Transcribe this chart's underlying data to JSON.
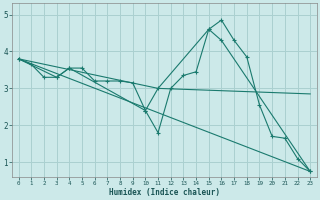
{
  "title": "",
  "xlabel": "Humidex (Indice chaleur)",
  "ylabel": "",
  "background_color": "#cce9e9",
  "grid_color": "#aad0d0",
  "line_color": "#1a7a6e",
  "xlim": [
    -0.5,
    23.5
  ],
  "ylim": [
    0.6,
    5.3
  ],
  "yticks": [
    1,
    2,
    3,
    4,
    5
  ],
  "xticks": [
    0,
    1,
    2,
    3,
    4,
    5,
    6,
    7,
    8,
    9,
    10,
    11,
    12,
    13,
    14,
    15,
    16,
    17,
    18,
    19,
    20,
    21,
    22,
    23
  ],
  "series": [
    {
      "x": [
        0,
        1,
        2,
        3,
        4,
        5,
        6,
        7,
        8,
        9,
        10,
        11,
        12,
        13,
        14,
        15,
        16,
        17,
        18,
        19,
        20,
        21,
        22,
        23
      ],
      "y": [
        3.8,
        3.65,
        3.3,
        3.3,
        3.55,
        3.55,
        3.2,
        3.2,
        3.2,
        3.15,
        2.4,
        1.8,
        3.0,
        3.35,
        3.45,
        4.6,
        4.85,
        4.3,
        3.85,
        2.55,
        1.7,
        1.65,
        1.1,
        0.75
      ],
      "has_markers": true
    },
    {
      "x": [
        0,
        3,
        4,
        10,
        11,
        15,
        16,
        23
      ],
      "y": [
        3.8,
        3.3,
        3.55,
        2.4,
        3.0,
        4.6,
        4.3,
        0.75
      ],
      "has_markers": true
    },
    {
      "x": [
        0,
        11,
        23
      ],
      "y": [
        3.8,
        3.0,
        2.85
      ],
      "has_markers": false
    },
    {
      "x": [
        0,
        23
      ],
      "y": [
        3.8,
        0.75
      ],
      "has_markers": false
    }
  ]
}
